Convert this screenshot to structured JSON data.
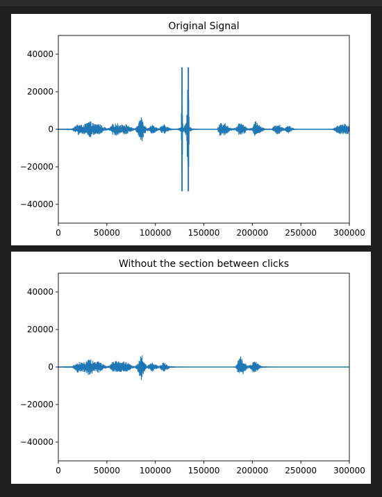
{
  "chart_data": [
    {
      "type": "line",
      "title": "Original Signal",
      "xlabel": "",
      "ylabel": "",
      "xlim": [
        0,
        300000
      ],
      "ylim": [
        -50000,
        50000
      ],
      "xticks": [
        0,
        50000,
        100000,
        150000,
        200000,
        250000,
        300000
      ],
      "yticks": [
        -40000,
        -20000,
        0,
        20000,
        40000
      ],
      "grid": false,
      "color": "#1f77b4",
      "series": [
        {
          "envelope": [
            [
              0,
              300
            ],
            [
              14000,
              500
            ],
            [
              17000,
              1500
            ],
            [
              20000,
              3200
            ],
            [
              24000,
              2400
            ],
            [
              28000,
              3000
            ],
            [
              32000,
              4800
            ],
            [
              35000,
              3500
            ],
            [
              38000,
              2900
            ],
            [
              42000,
              3200
            ],
            [
              46000,
              1600
            ],
            [
              50000,
              600
            ],
            [
              53000,
              800
            ],
            [
              56000,
              3000
            ],
            [
              60000,
              3400
            ],
            [
              64000,
              2600
            ],
            [
              68000,
              3100
            ],
            [
              72000,
              2200
            ],
            [
              76000,
              900
            ],
            [
              79000,
              500
            ],
            [
              82000,
              2500
            ],
            [
              86000,
              7800
            ],
            [
              88000,
              4000
            ],
            [
              91000,
              700
            ],
            [
              94000,
              1500
            ],
            [
              97000,
              2600
            ],
            [
              101000,
              1200
            ],
            [
              104000,
              500
            ],
            [
              106000,
              1800
            ],
            [
              109000,
              2700
            ],
            [
              112000,
              1500
            ],
            [
              116000,
              500
            ],
            [
              121000,
              300
            ],
            [
              125000,
              800
            ],
            [
              126500,
              1500
            ],
            [
              127500,
              33000
            ],
            [
              128500,
              1500
            ],
            [
              130000,
              2000
            ],
            [
              132000,
              3500
            ],
            [
              134000,
              33000
            ],
            [
              135000,
              1800
            ],
            [
              137000,
              800
            ],
            [
              140000,
              400
            ],
            [
              146000,
              200
            ],
            [
              160000,
              150
            ],
            [
              164000,
              300
            ],
            [
              166000,
              3800
            ],
            [
              169000,
              3000
            ],
            [
              172000,
              3400
            ],
            [
              176000,
              1200
            ],
            [
              180000,
              600
            ],
            [
              183000,
              1000
            ],
            [
              186000,
              3000
            ],
            [
              189000,
              3700
            ],
            [
              192000,
              2200
            ],
            [
              195000,
              500
            ],
            [
              200000,
              900
            ],
            [
              203000,
              4500
            ],
            [
              206000,
              3600
            ],
            [
              209000,
              1500
            ],
            [
              213000,
              500
            ],
            [
              220000,
              400
            ],
            [
              224000,
              2500
            ],
            [
              227000,
              3300
            ],
            [
              230000,
              1500
            ],
            [
              233000,
              700
            ],
            [
              237000,
              2500
            ],
            [
              240000,
              1200
            ],
            [
              244000,
              300
            ],
            [
              250000,
              200
            ],
            [
              268000,
              200
            ],
            [
              276000,
              200
            ],
            [
              283000,
              300
            ],
            [
              286000,
              1500
            ],
            [
              289000,
              2800
            ],
            [
              292000,
              2500
            ],
            [
              295000,
              2900
            ],
            [
              298000,
              2600
            ],
            [
              300000,
              1800
            ]
          ]
        }
      ]
    },
    {
      "type": "line",
      "title": "Without the section between clicks",
      "xlabel": "",
      "ylabel": "",
      "xlim": [
        0,
        300000
      ],
      "ylim": [
        -50000,
        50000
      ],
      "xticks": [
        0,
        50000,
        100000,
        150000,
        200000,
        250000,
        300000
      ],
      "yticks": [
        -40000,
        -20000,
        0,
        20000,
        40000
      ],
      "grid": false,
      "color": "#1f77b4",
      "series": [
        {
          "envelope": [
            [
              0,
              300
            ],
            [
              14000,
              500
            ],
            [
              17000,
              1500
            ],
            [
              20000,
              3200
            ],
            [
              24000,
              2400
            ],
            [
              28000,
              3000
            ],
            [
              32000,
              4800
            ],
            [
              35000,
              3500
            ],
            [
              38000,
              2900
            ],
            [
              42000,
              3200
            ],
            [
              46000,
              1600
            ],
            [
              50000,
              600
            ],
            [
              53000,
              800
            ],
            [
              56000,
              3000
            ],
            [
              60000,
              3400
            ],
            [
              64000,
              2600
            ],
            [
              68000,
              3100
            ],
            [
              72000,
              2200
            ],
            [
              76000,
              900
            ],
            [
              79000,
              500
            ],
            [
              82000,
              2500
            ],
            [
              86000,
              7800
            ],
            [
              88000,
              4000
            ],
            [
              91000,
              700
            ],
            [
              94000,
              1500
            ],
            [
              97000,
              2600
            ],
            [
              101000,
              1200
            ],
            [
              104000,
              500
            ],
            [
              106000,
              1800
            ],
            [
              109000,
              2700
            ],
            [
              112000,
              1500
            ],
            [
              116000,
              500
            ],
            [
              122000,
              300
            ],
            [
              130000,
              200
            ],
            [
              150000,
              150
            ],
            [
              170000,
              150
            ],
            [
              180000,
              200
            ],
            [
              183000,
              600
            ],
            [
              185000,
              3500
            ],
            [
              188000,
              5800
            ],
            [
              190000,
              4200
            ],
            [
              193000,
              2000
            ],
            [
              196000,
              700
            ],
            [
              199000,
              1500
            ],
            [
              202000,
              3800
            ],
            [
              205000,
              2300
            ],
            [
              208000,
              800
            ],
            [
              212000,
              400
            ],
            [
              220000,
              200
            ],
            [
              240000,
              150
            ],
            [
              300000,
              100
            ]
          ]
        }
      ]
    }
  ]
}
